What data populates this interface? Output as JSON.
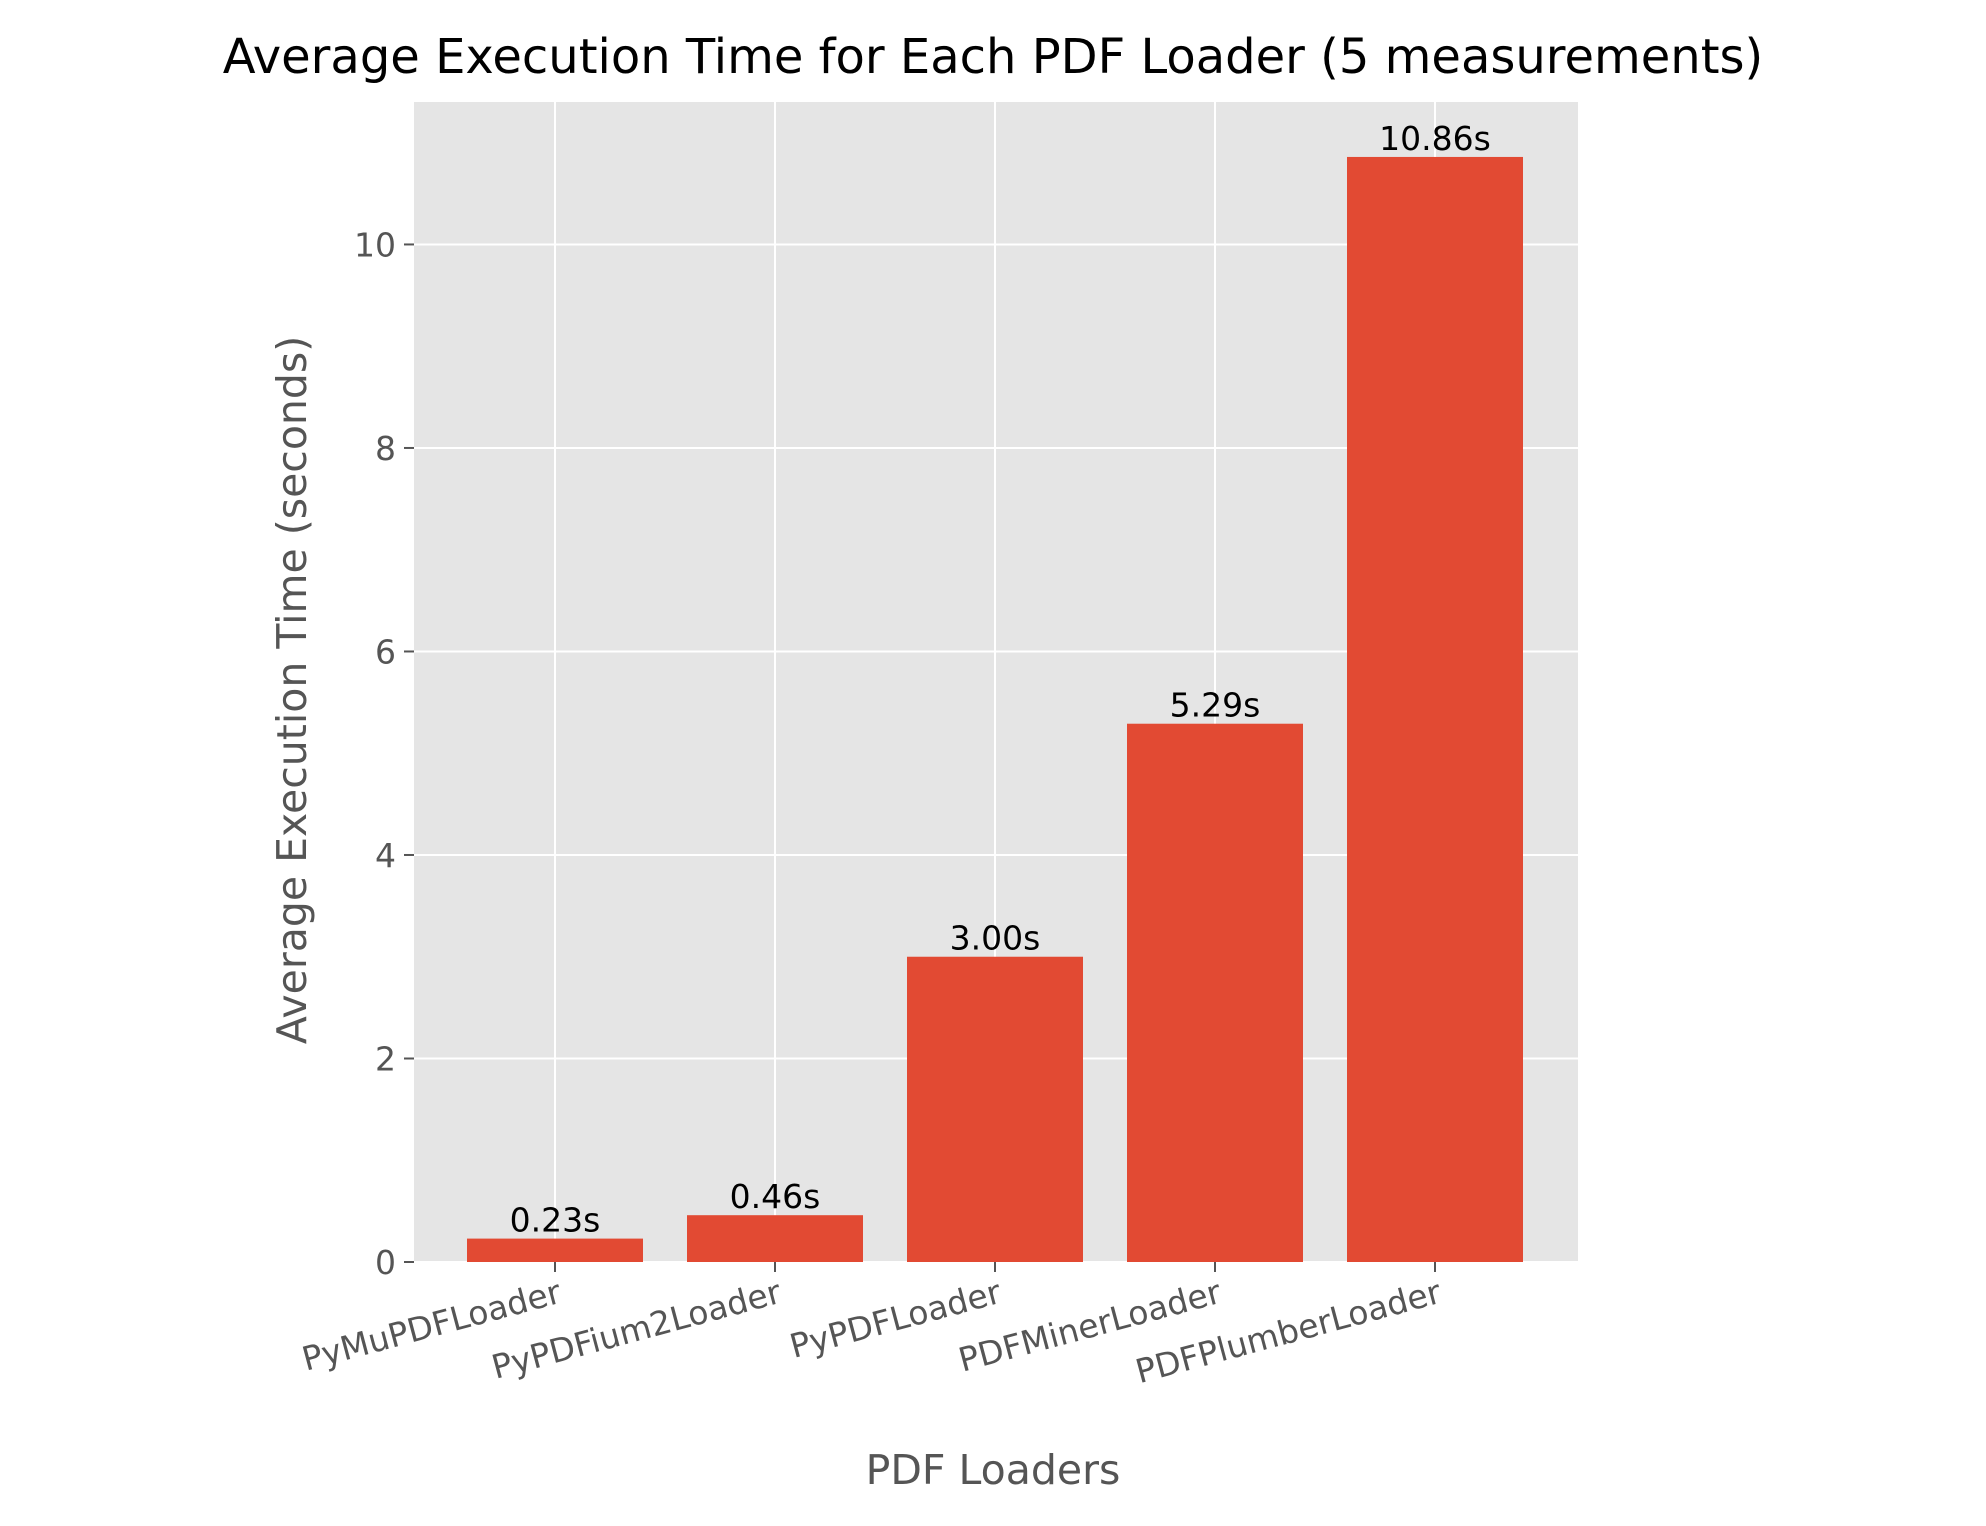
{
  "chart_data": {
    "type": "bar",
    "title": "Average Execution Time for Each PDF Loader (5 measurements)",
    "xlabel": "PDF Loaders",
    "ylabel": "Average Execution Time (seconds)",
    "categories": [
      "PyMuPDFLoader",
      "PyPDFium2Loader",
      "PyPDFLoader",
      "PDFMinerLoader",
      "PDFPlumberLoader"
    ],
    "values": [
      0.23,
      0.46,
      3.0,
      5.29,
      10.86
    ],
    "data_labels": [
      "0.23s",
      "0.46s",
      "3.00s",
      "5.29s",
      "10.86s"
    ],
    "ylim": [
      0,
      11.4
    ],
    "yticks": [
      0,
      2,
      4,
      6,
      8,
      10
    ],
    "grid": true,
    "colors": {
      "bar": "#E24A33",
      "plot_background": "#E5E5E5",
      "grid": "#FFFFFF",
      "tick_text": "#555555",
      "title_text": "#000000"
    }
  }
}
